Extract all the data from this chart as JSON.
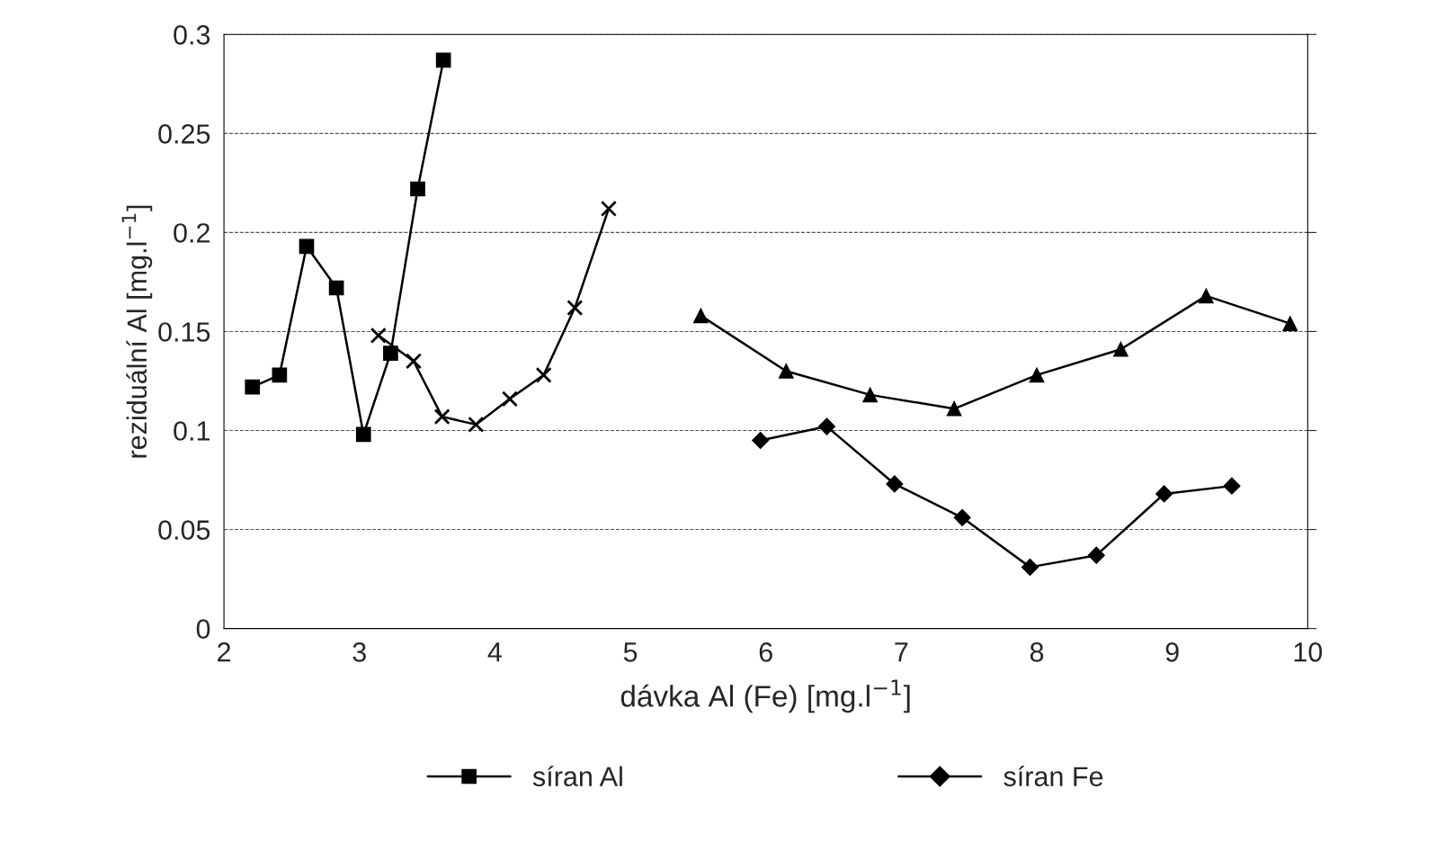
{
  "chart_data": {
    "type": "line",
    "xlabel": "dávka Al (Fe) [mg.l$^{−1}$]",
    "ylabel": "reziduální Al [mg.l$^{−1}$]",
    "xlim": [
      2,
      10
    ],
    "xticks": [
      2,
      3,
      4,
      5,
      6,
      7,
      8,
      9,
      10
    ],
    "ylim": [
      0,
      0.3
    ],
    "yticks": [
      0,
      0.05,
      0.1,
      0.15,
      0.2,
      0.25,
      0.3
    ],
    "grid": "y",
    "legend": "bottom",
    "line_style": "solid",
    "series": [
      {
        "name": "síran Al",
        "color": "#000000",
        "marker": "square",
        "x": [
          2.21,
          2.41,
          2.61,
          2.83,
          3.03,
          3.23,
          3.43,
          3.62
        ],
        "values": [
          0.122,
          0.128,
          0.193,
          0.172,
          0.098,
          0.139,
          0.222,
          0.287
        ]
      },
      {
        "name": "síran Fe",
        "color": "#000000",
        "marker": "diamond",
        "x": [
          5.96,
          6.45,
          6.95,
          7.45,
          7.95,
          8.44,
          8.94,
          9.44
        ],
        "values": [
          0.095,
          0.102,
          0.073,
          0.056,
          0.031,
          0.037,
          0.068,
          0.072
        ]
      },
      {
        "color": "#000000",
        "marker": "cross",
        "x": [
          3.14,
          3.4,
          3.61,
          3.86,
          4.11,
          4.36,
          4.59,
          4.84
        ],
        "values": [
          0.148,
          0.135,
          0.107,
          0.103,
          0.116,
          0.128,
          0.162,
          0.212
        ]
      },
      {
        "color": "#000000",
        "marker": "triangle",
        "x": [
          5.52,
          6.15,
          6.77,
          7.39,
          8.0,
          8.62,
          9.25,
          9.87
        ],
        "values": [
          0.158,
          0.13,
          0.118,
          0.111,
          0.128,
          0.141,
          0.168,
          0.154
        ]
      }
    ]
  }
}
